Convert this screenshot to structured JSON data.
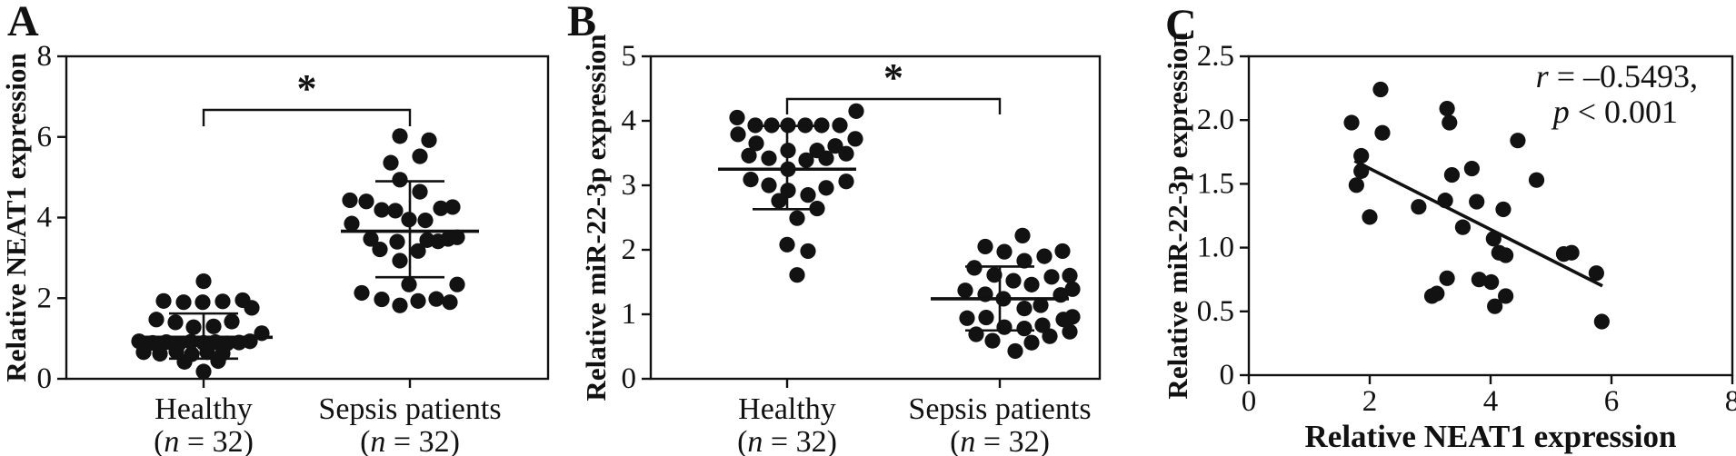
{
  "figure": {
    "background": "#ffffff",
    "ink_color": "#111111",
    "dot_color": "#121212"
  },
  "chart_data": [
    {
      "type": "dot",
      "panel_label": "A",
      "ylabel": "Relative NEAT1 expression",
      "ylim": [
        0,
        8
      ],
      "yticks": [
        "0",
        "2",
        "4",
        "6",
        "8"
      ],
      "significance": "*",
      "groups": [
        {
          "label": "Healthy",
          "n_pre": "(",
          "n_italic": "n",
          "n_post": " = 32)",
          "mean": 1.03,
          "sd_high": 1.62,
          "sd_low": 0.5,
          "points": [
            [
              0,
              2.42
            ],
            [
              -44,
              1.93
            ],
            [
              -22,
              1.9
            ],
            [
              -1,
              1.9
            ],
            [
              21,
              1.92
            ],
            [
              43,
              1.95
            ],
            [
              53,
              1.76
            ],
            [
              -52,
              1.47
            ],
            [
              -31,
              1.4
            ],
            [
              31,
              1.42
            ],
            [
              -11,
              1.28
            ],
            [
              11,
              1.3
            ],
            [
              64,
              1.13
            ],
            [
              -71,
              0.93
            ],
            [
              -56,
              0.89
            ],
            [
              -41,
              0.91
            ],
            [
              -27,
              0.87
            ],
            [
              -14,
              0.92
            ],
            [
              0,
              0.89
            ],
            [
              13,
              0.91
            ],
            [
              26,
              0.88
            ],
            [
              39,
              0.9
            ],
            [
              51,
              0.93
            ],
            [
              -66,
              0.66
            ],
            [
              -48,
              0.62
            ],
            [
              -30,
              0.68
            ],
            [
              -13,
              0.61
            ],
            [
              4,
              0.66
            ],
            [
              21,
              0.63
            ],
            [
              -21,
              0.42
            ],
            [
              16,
              0.44
            ],
            [
              0,
              0.18
            ]
          ]
        },
        {
          "label": "Sepsis patients",
          "n_pre": "(",
          "n_italic": "n",
          "n_post": " = 32)",
          "mean": 3.66,
          "sd_high": 4.9,
          "sd_low": 2.52,
          "points": [
            [
              -11,
              6.02
            ],
            [
              21,
              5.92
            ],
            [
              11,
              5.52
            ],
            [
              -21,
              5.36
            ],
            [
              -11,
              4.94
            ],
            [
              11,
              4.64
            ],
            [
              -66,
              4.43
            ],
            [
              -48,
              4.4
            ],
            [
              -31,
              4.19
            ],
            [
              -16,
              4.17
            ],
            [
              34,
              4.23
            ],
            [
              47,
              4.26
            ],
            [
              -1,
              3.95
            ],
            [
              17,
              3.93
            ],
            [
              -64,
              3.85
            ],
            [
              -43,
              3.47
            ],
            [
              -14,
              3.4
            ],
            [
              19,
              3.44
            ],
            [
              31,
              3.41
            ],
            [
              42,
              3.47
            ],
            [
              52,
              3.51
            ],
            [
              -33,
              3.21
            ],
            [
              9,
              3.17
            ],
            [
              -11,
              2.93
            ],
            [
              -1,
              2.34
            ],
            [
              52,
              2.34
            ],
            [
              -53,
              2.13
            ],
            [
              -31,
              1.97
            ],
            [
              -11,
              1.82
            ],
            [
              9,
              1.93
            ],
            [
              29,
              1.98
            ],
            [
              44,
              1.9
            ]
          ]
        }
      ]
    },
    {
      "type": "dot",
      "panel_label": "B",
      "ylabel": "Relative miR-22-3p expression",
      "ylim": [
        0,
        5
      ],
      "yticks": [
        "0",
        "1",
        "2",
        "3",
        "4",
        "5"
      ],
      "significance": "*",
      "groups": [
        {
          "label": "Healthy",
          "n_pre": "(",
          "n_italic": "n",
          "n_post": " = 32)",
          "mean": 3.25,
          "sd_high": 3.92,
          "sd_low": 2.63,
          "points": [
            [
              76,
              4.15
            ],
            [
              -55,
              4.05
            ],
            [
              -54,
              3.79
            ],
            [
              -35,
              3.93
            ],
            [
              -17,
              3.93
            ],
            [
              1,
              3.93
            ],
            [
              20,
              3.93
            ],
            [
              38,
              3.93
            ],
            [
              58,
              3.93
            ],
            [
              75,
              3.72
            ],
            [
              -34,
              3.65
            ],
            [
              1,
              3.54
            ],
            [
              33,
              3.54
            ],
            [
              53,
              3.61
            ],
            [
              -42,
              3.46
            ],
            [
              -20,
              3.42
            ],
            [
              43,
              3.42
            ],
            [
              65,
              3.49
            ],
            [
              21,
              3.39
            ],
            [
              1,
              3.25
            ],
            [
              -40,
              3.09
            ],
            [
              -20,
              3.0
            ],
            [
              1,
              2.92
            ],
            [
              23,
              2.85
            ],
            [
              43,
              2.96
            ],
            [
              65,
              3.06
            ],
            [
              -9,
              2.76
            ],
            [
              33,
              2.64
            ],
            [
              11,
              2.49
            ],
            [
              0,
              2.08
            ],
            [
              23,
              1.98
            ],
            [
              11,
              1.61
            ]
          ]
        },
        {
          "label": "Sepsis patients",
          "n_pre": "(",
          "n_italic": "n",
          "n_post": " = 32)",
          "mean": 1.24,
          "sd_high": 1.74,
          "sd_low": 0.75,
          "points": [
            [
              25,
              2.22
            ],
            [
              -16,
              2.05
            ],
            [
              5,
              1.97
            ],
            [
              49,
              1.9
            ],
            [
              69,
              1.98
            ],
            [
              27,
              1.83
            ],
            [
              -28,
              1.72
            ],
            [
              -6,
              1.61
            ],
            [
              15,
              1.52
            ],
            [
              35,
              1.46
            ],
            [
              57,
              1.58
            ],
            [
              77,
              1.6
            ],
            [
              -38,
              1.37
            ],
            [
              -16,
              1.31
            ],
            [
              80,
              1.39
            ],
            [
              4,
              1.24
            ],
            [
              67,
              1.3
            ],
            [
              45,
              1.14
            ],
            [
              27,
              1.09
            ],
            [
              -36,
              0.94
            ],
            [
              -15,
              0.95
            ],
            [
              80,
              0.96
            ],
            [
              70,
              0.92
            ],
            [
              5,
              0.8
            ],
            [
              27,
              0.78
            ],
            [
              47,
              0.83
            ],
            [
              77,
              0.73
            ],
            [
              -26,
              0.69
            ],
            [
              -8,
              0.59
            ],
            [
              35,
              0.56
            ],
            [
              55,
              0.66
            ],
            [
              17,
              0.43
            ]
          ]
        }
      ]
    },
    {
      "type": "scatter",
      "panel_label": "C",
      "xlabel": "Relative NEAT1 expression",
      "ylabel": "Relative miR-22-3p expression",
      "xlim": [
        0,
        8
      ],
      "xticks": [
        "0",
        "2",
        "4",
        "6",
        "8"
      ],
      "ylim": [
        0,
        2.5
      ],
      "yticks": [
        "0",
        "0.5",
        "1.0",
        "1.5",
        "2.0",
        "2.5"
      ],
      "annotation": {
        "line1_italic": "r",
        "line1_rest": " = –0.5493,",
        "line2_italic": "p",
        "line2_rest": " < 0.001"
      },
      "points": [
        [
          2.18,
          2.24
        ],
        [
          1.7,
          1.98
        ],
        [
          2.21,
          1.9
        ],
        [
          3.28,
          2.09
        ],
        [
          3.32,
          1.98
        ],
        [
          4.45,
          1.84
        ],
        [
          1.86,
          1.72
        ],
        [
          1.86,
          1.6
        ],
        [
          1.78,
          1.49
        ],
        [
          4.76,
          1.53
        ],
        [
          3.36,
          1.57
        ],
        [
          3.69,
          1.62
        ],
        [
          2.0,
          1.24
        ],
        [
          2.81,
          1.32
        ],
        [
          3.25,
          1.37
        ],
        [
          3.77,
          1.36
        ],
        [
          4.21,
          1.3
        ],
        [
          3.54,
          1.16
        ],
        [
          4.05,
          1.07
        ],
        [
          4.14,
          0.96
        ],
        [
          4.25,
          0.94
        ],
        [
          5.21,
          0.95
        ],
        [
          5.34,
          0.96
        ],
        [
          5.75,
          0.8
        ],
        [
          3.28,
          0.76
        ],
        [
          3.11,
          0.64
        ],
        [
          3.03,
          0.62
        ],
        [
          3.81,
          0.75
        ],
        [
          4.01,
          0.73
        ],
        [
          4.07,
          0.54
        ],
        [
          4.25,
          0.62
        ],
        [
          5.84,
          0.42
        ]
      ],
      "regression": {
        "x1": 1.75,
        "y1": 1.68,
        "x2": 5.85,
        "y2": 0.7
      }
    }
  ]
}
